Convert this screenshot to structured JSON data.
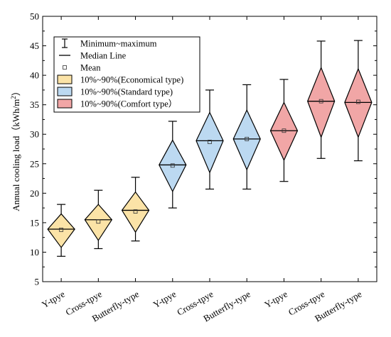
{
  "chart_data": {
    "type": "violin",
    "ylabel": "Annual cooling load（kWh/m",
    "ylabel_sup": "2",
    "ylabel_end": "）",
    "ylim": [
      5,
      50
    ],
    "yticks": [
      "5",
      "10",
      "15",
      "20",
      "25",
      "30",
      "35",
      "40",
      "45",
      "50"
    ],
    "categories": [
      "Y-tpye",
      "Cross-tpye",
      "Butterfly-type",
      "Y-tpye",
      "Cross-tpye",
      "Butterfly-type",
      "Y-tpye",
      "Cross-tpye",
      "Butterfly-type"
    ],
    "series": [
      {
        "name": "10%~90%(Economical type)",
        "color": "#fbe3a7",
        "items": [
          {
            "min": 9.3,
            "p10": 10.8,
            "median": 13.9,
            "mean": 13.8,
            "p90": 16.5,
            "max": 18.1
          },
          {
            "min": 10.6,
            "p10": 12.0,
            "median": 15.5,
            "mean": 15.2,
            "p90": 18.1,
            "max": 20.5
          },
          {
            "min": 11.9,
            "p10": 13.4,
            "median": 17.1,
            "mean": 16.9,
            "p90": 20.2,
            "max": 22.7
          }
        ]
      },
      {
        "name": "10%~90%(Standard type)",
        "color": "#bcd9f1",
        "items": [
          {
            "min": 17.5,
            "p10": 20.3,
            "median": 24.8,
            "mean": 24.7,
            "p90": 29.0,
            "max": 32.2
          },
          {
            "min": 20.7,
            "p10": 23.5,
            "median": 28.9,
            "mean": 28.7,
            "p90": 33.7,
            "max": 37.5
          },
          {
            "min": 20.7,
            "p10": 24.0,
            "median": 29.2,
            "mean": 29.2,
            "p90": 34.1,
            "max": 38.4
          }
        ]
      },
      {
        "name": "10%~90%(Comfort type）",
        "color": "#f1a6a6",
        "items": [
          {
            "min": 22.0,
            "p10": 25.6,
            "median": 30.6,
            "mean": 30.6,
            "p90": 35.4,
            "max": 39.3
          },
          {
            "min": 25.9,
            "p10": 29.5,
            "median": 35.6,
            "mean": 35.6,
            "p90": 41.3,
            "max": 45.8
          },
          {
            "min": 25.5,
            "p10": 29.5,
            "median": 35.4,
            "mean": 35.5,
            "p90": 41.1,
            "max": 45.9
          }
        ]
      }
    ],
    "legend": {
      "placement": "top-left",
      "entries": [
        "Minimum~maximum",
        "Median Line",
        "Mean",
        "10%~90%(Economical type)",
        "10%~90%(Standard type)",
        "10%~90%(Comfort type）"
      ]
    },
    "grid": false
  }
}
